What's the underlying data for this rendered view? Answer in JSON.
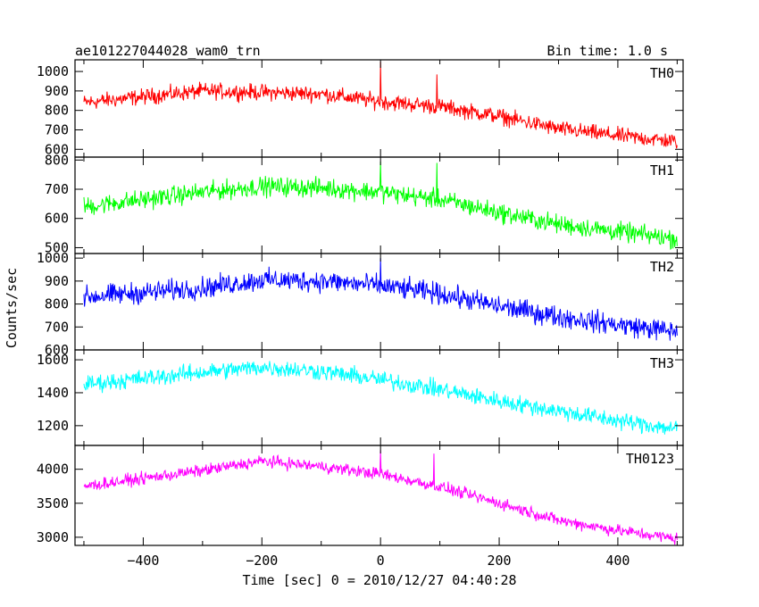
{
  "header": {
    "left_title": "ae101227044028_wam0_trn",
    "right_title": "Bin time: 1.0 s"
  },
  "chart_data": {
    "type": "line",
    "xlabel": "Time [sec] 0 = 2010/12/27 04:40:28",
    "ylabel": "Counts/sec",
    "xlim": [
      -515,
      510
    ],
    "x_ticks": [
      -400,
      -200,
      0,
      200,
      400
    ],
    "x_tick_labels": [
      "−400",
      "−200",
      "0",
      "200",
      "400"
    ],
    "x_range": [
      -500,
      500
    ],
    "bin_time": 1.0,
    "panels": [
      {
        "name": "TH0",
        "color": "#ff0000",
        "ylim": [
          560,
          1060
        ],
        "yticks": [
          600,
          700,
          800,
          900,
          1000
        ],
        "trend": [
          [
            -500,
            840
          ],
          [
            -300,
            900
          ],
          [
            -100,
            885
          ],
          [
            0,
            845
          ],
          [
            100,
            820
          ],
          [
            200,
            770
          ],
          [
            300,
            705
          ],
          [
            400,
            670
          ],
          [
            500,
            640
          ]
        ],
        "noise": 35,
        "spikes": [
          [
            0,
            1050
          ],
          [
            95,
            985
          ]
        ]
      },
      {
        "name": "TH1",
        "color": "#00ff00",
        "ylim": [
          480,
          810
        ],
        "yticks": [
          500,
          600,
          700,
          800
        ],
        "trend": [
          [
            -500,
            640
          ],
          [
            -300,
            690
          ],
          [
            -200,
            710
          ],
          [
            -100,
            705
          ],
          [
            0,
            690
          ],
          [
            100,
            665
          ],
          [
            200,
            620
          ],
          [
            300,
            580
          ],
          [
            400,
            555
          ],
          [
            500,
            530
          ]
        ],
        "noise": 28,
        "spikes": [
          [
            0,
            795
          ],
          [
            95,
            790
          ]
        ]
      },
      {
        "name": "TH2",
        "color": "#0000ff",
        "ylim": [
          600,
          1020
        ],
        "yticks": [
          600,
          700,
          800,
          900,
          1000
        ],
        "trend": [
          [
            -500,
            830
          ],
          [
            -300,
            870
          ],
          [
            -200,
            905
          ],
          [
            -100,
            900
          ],
          [
            0,
            880
          ],
          [
            100,
            845
          ],
          [
            200,
            790
          ],
          [
            300,
            745
          ],
          [
            400,
            710
          ],
          [
            500,
            680
          ]
        ],
        "noise": 40,
        "spikes": [
          [
            0,
            1000
          ]
        ]
      },
      {
        "name": "TH3",
        "color": "#00ffff",
        "ylim": [
          1080,
          1660
        ],
        "yticks": [
          1200,
          1400,
          1600
        ],
        "trend": [
          [
            -500,
            1450
          ],
          [
            -300,
            1525
          ],
          [
            -200,
            1555
          ],
          [
            -100,
            1530
          ],
          [
            0,
            1480
          ],
          [
            100,
            1420
          ],
          [
            200,
            1350
          ],
          [
            300,
            1290
          ],
          [
            400,
            1230
          ],
          [
            500,
            1180
          ]
        ],
        "noise": 45,
        "spikes": []
      },
      {
        "name": "TH0123",
        "color": "#ff00ff",
        "ylim": [
          2880,
          4350
        ],
        "yticks": [
          3000,
          3500,
          4000
        ],
        "trend": [
          [
            -500,
            3750
          ],
          [
            -300,
            3980
          ],
          [
            -200,
            4120
          ],
          [
            -100,
            4040
          ],
          [
            0,
            3930
          ],
          [
            100,
            3740
          ],
          [
            200,
            3500
          ],
          [
            300,
            3250
          ],
          [
            400,
            3100
          ],
          [
            500,
            2980
          ]
        ],
        "noise": 75,
        "spikes": [
          [
            0,
            4280
          ],
          [
            90,
            4230
          ]
        ]
      }
    ]
  }
}
